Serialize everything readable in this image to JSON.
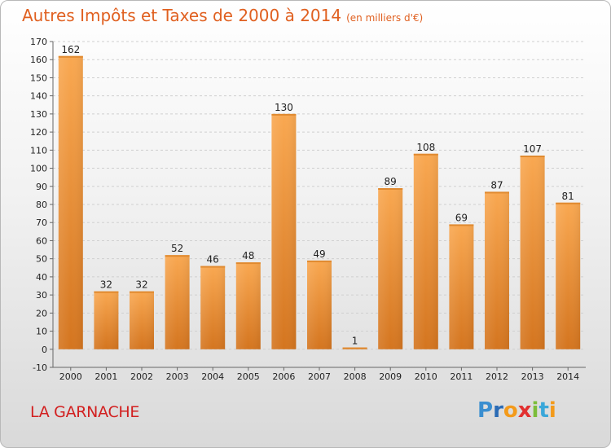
{
  "title": "Autres Impôts et Taxes de 2000 à 2014",
  "unit": "(en milliers d'€)",
  "place": "LA GARNACHE",
  "logo": {
    "letters": [
      "P",
      "r",
      "o",
      "x",
      "i",
      "t",
      "i"
    ]
  },
  "colors": {
    "bar": "#f7a24a",
    "bar_dark": "#d4751f",
    "title": "#e06020",
    "place": "#d22020",
    "grid": "#d0d0d0"
  },
  "chart_data": {
    "type": "bar",
    "categories": [
      "2000",
      "2001",
      "2002",
      "2003",
      "2004",
      "2005",
      "2006",
      "2007",
      "2008",
      "2009",
      "2010",
      "2011",
      "2012",
      "2013",
      "2014"
    ],
    "values": [
      162,
      32,
      32,
      52,
      46,
      48,
      130,
      49,
      1,
      89,
      108,
      69,
      87,
      107,
      81
    ],
    "ylim": [
      -10,
      170
    ],
    "yticks": [
      -10,
      0,
      10,
      20,
      30,
      40,
      50,
      60,
      70,
      80,
      90,
      100,
      110,
      120,
      130,
      140,
      150,
      160,
      170
    ],
    "grid": "horizontal-dashed",
    "data_labels": true
  }
}
